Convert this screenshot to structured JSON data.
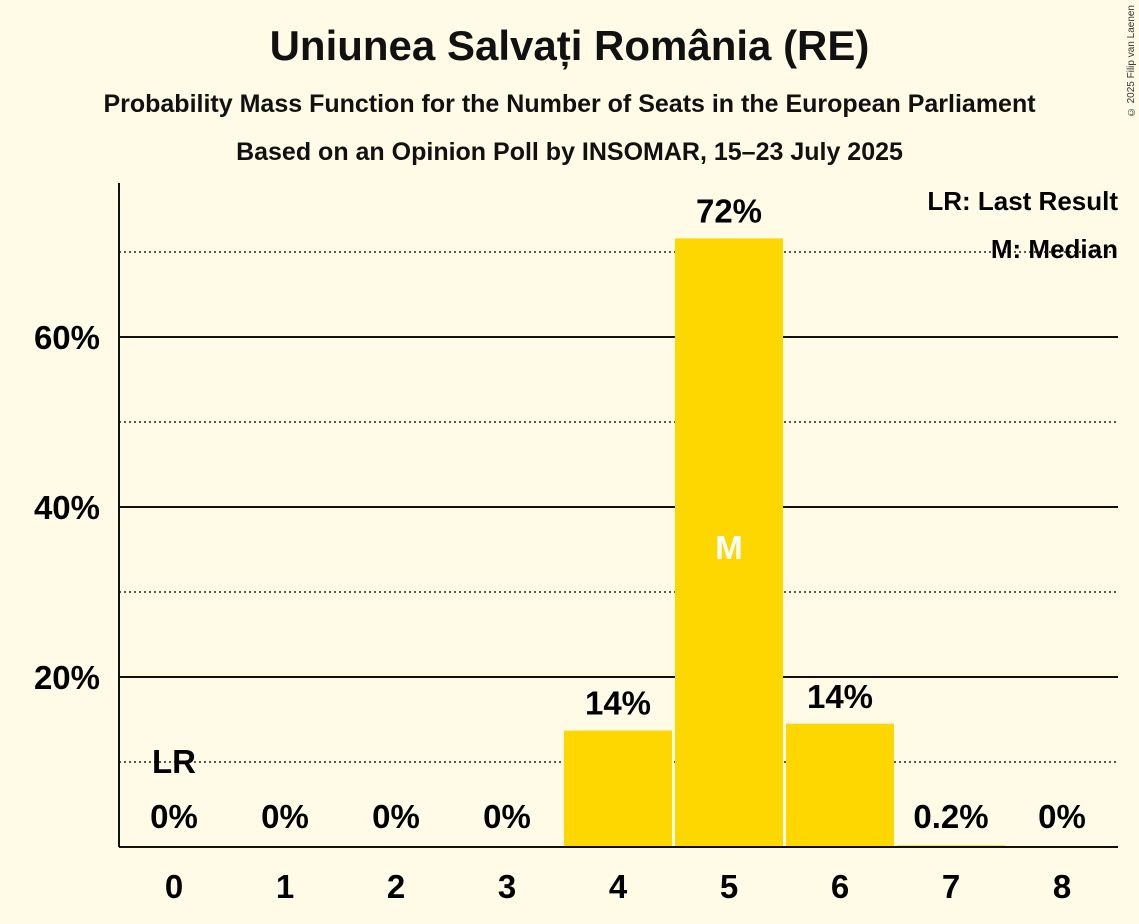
{
  "title": "Uniunea Salvați România (RE)",
  "subtitle": "Probability Mass Function for the Number of Seats in the European Parliament",
  "subtitle2": "Based on an Opinion Poll by INSOMAR, 15–23 July 2025",
  "copyright": "© 2025 Filip van Laenen",
  "legend": {
    "last_result": "LR: Last Result",
    "median": "M: Median"
  },
  "colors": {
    "bar": "#ffd700",
    "background": "#fffbe6",
    "median_text": "#ffffff"
  },
  "chart_data": {
    "type": "bar",
    "categories": [
      "0",
      "1",
      "2",
      "3",
      "4",
      "5",
      "6",
      "7",
      "8"
    ],
    "values": [
      0,
      0,
      0,
      0,
      13.7,
      71.6,
      14.5,
      0.2,
      0
    ],
    "value_labels": [
      "0%",
      "0%",
      "0%",
      "0%",
      "14%",
      "72%",
      "14%",
      "0.2%",
      "0%"
    ],
    "ylim": [
      0,
      78
    ],
    "yticks": [
      {
        "value": 20,
        "label": "20%"
      },
      {
        "value": 40,
        "label": "40%"
      },
      {
        "value": 60,
        "label": "60%"
      }
    ],
    "dotted_lines": [
      10,
      30,
      50,
      70
    ],
    "last_result_index": 0,
    "last_result_label": "LR",
    "median_index": 5,
    "median_label": "M",
    "grid": true,
    "legend_position": "top-right"
  }
}
